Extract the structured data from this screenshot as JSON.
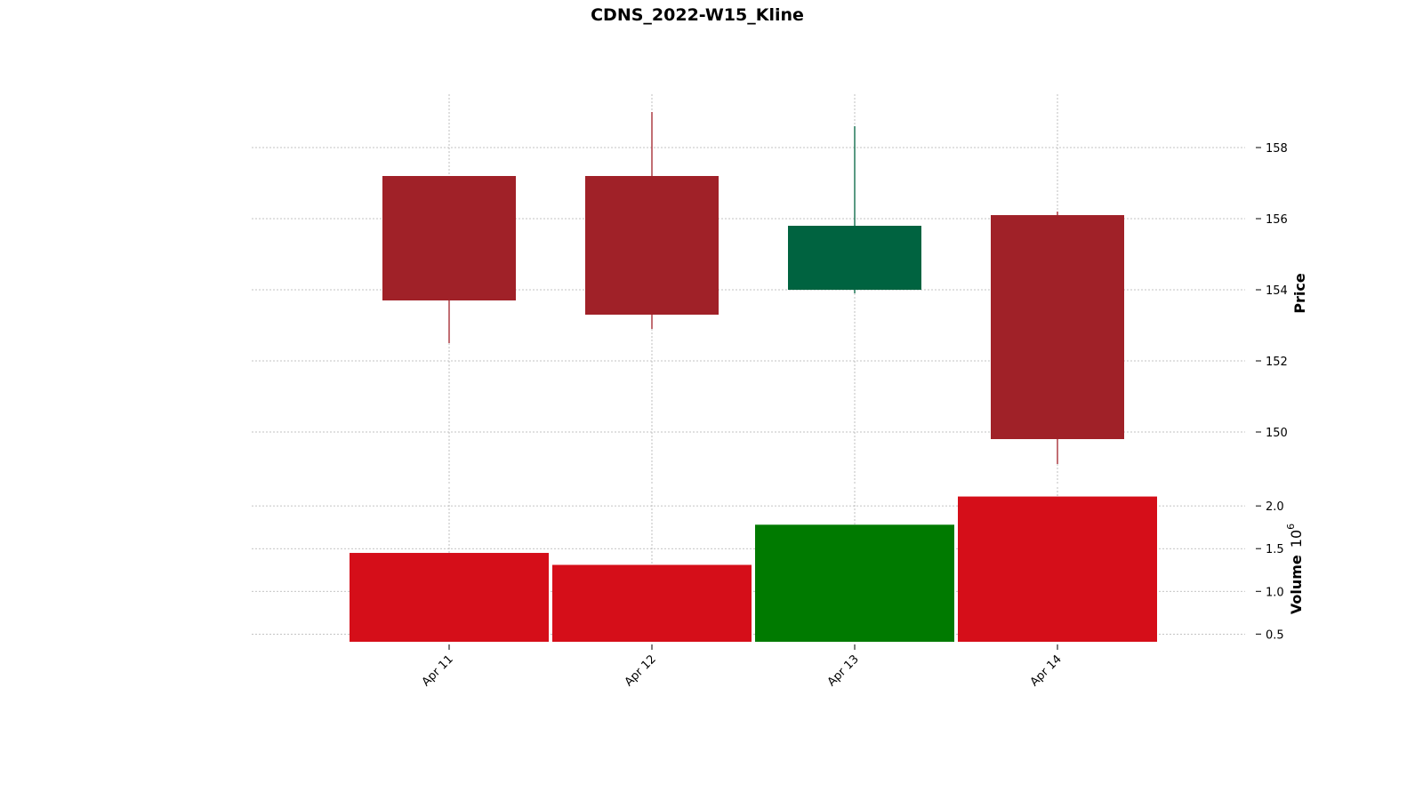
{
  "chart_data": {
    "type": "candlestick",
    "title": "CDNS_2022-W15_Kline",
    "categories": [
      "Apr 11",
      "Apr 12",
      "Apr 13",
      "Apr 14"
    ],
    "ohlc": [
      {
        "date": "Apr 11",
        "open": 157.2,
        "high": 157.2,
        "low": 152.5,
        "close": 153.7
      },
      {
        "date": "Apr 12",
        "open": 157.2,
        "high": 159.0,
        "low": 152.9,
        "close": 153.3
      },
      {
        "date": "Apr 13",
        "open": 154.0,
        "high": 158.6,
        "low": 153.9,
        "close": 155.8
      },
      {
        "date": "Apr 14",
        "open": 156.1,
        "high": 156.2,
        "low": 149.1,
        "close": 149.8
      }
    ],
    "volume": {
      "values": [
        1.45,
        1.31,
        1.78,
        2.11
      ],
      "multiplier_label": "10",
      "multiplier_exp": "6",
      "ylabel": "Volume",
      "yticks": [
        0.5,
        1.0,
        1.5,
        2.0
      ],
      "yticks_labels": [
        "0.5",
        "1.0",
        "1.5",
        "2.0"
      ],
      "ylim": [
        0.41,
        2.22
      ]
    },
    "price": {
      "ylabel": "Price",
      "yticks": [
        150,
        152,
        154,
        156,
        158
      ],
      "ylim": [
        148.5,
        159.5
      ]
    },
    "colors": {
      "up_candle": "#006340",
      "down_candle": "#a02128",
      "up_volume": "#007a00",
      "down_volume": "#d50e19",
      "grid": "#b0b0b0"
    },
    "grid": true
  }
}
